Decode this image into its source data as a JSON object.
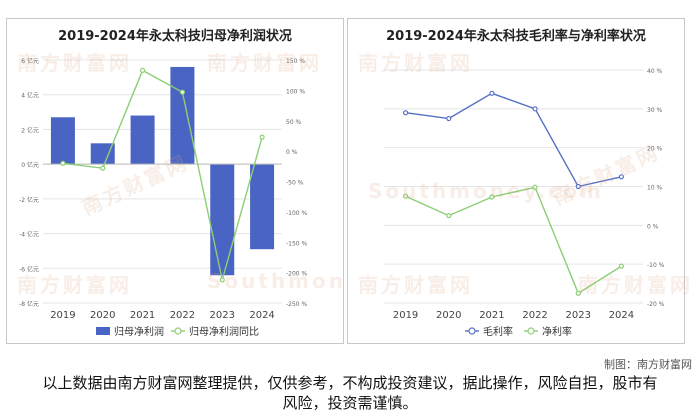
{
  "colors": {
    "bar": "#4a64c4",
    "yoy_line": "#8bcf73",
    "gross_line": "#5670c6",
    "net_line": "#8bcf73",
    "grid": "#e5e5e5",
    "axis_text": "#666666"
  },
  "watermark": {
    "cn": "南方财富网",
    "en": "Southmoney.com"
  },
  "chart_data": [
    {
      "type": "bar",
      "title": "2019-2024年永太科技归母净利润状况",
      "categories": [
        "2019",
        "2020",
        "2021",
        "2022",
        "2023",
        "2024"
      ],
      "y_left": {
        "ylim": [
          -8,
          6
        ],
        "ticks": [
          6,
          4,
          2,
          0,
          -2,
          -4,
          -6,
          -8
        ],
        "tick_labels": [
          "6 亿元",
          "4 亿元",
          "2 亿元",
          "0 亿元",
          "-2 亿元",
          "-4 亿元",
          "-6 亿元",
          "-8 亿元"
        ]
      },
      "y_right": {
        "ylim": [
          -250,
          150
        ],
        "ticks": [
          150,
          100,
          50,
          0,
          -50,
          -100,
          -150,
          -200,
          -250
        ],
        "tick_labels": [
          "150 %",
          "100 %",
          "50 %",
          "0 %",
          "-50 %",
          "-100 %",
          "-150 %",
          "-200 %",
          "-250 %"
        ]
      },
      "series": [
        {
          "name": "归母净利润",
          "type": "bar",
          "axis": "left",
          "values": [
            2.7,
            1.2,
            2.8,
            5.6,
            -6.4,
            -4.9
          ]
        },
        {
          "name": "归母净利润同比",
          "type": "line",
          "axis": "right",
          "values": [
            -20,
            -28,
            133,
            97,
            -212,
            23
          ]
        }
      ],
      "legend": {
        "placement": "bottom"
      },
      "grid": true
    },
    {
      "type": "line",
      "title": "2019-2024年永太科技毛利率与净利率状况",
      "categories": [
        "2019",
        "2020",
        "2021",
        "2022",
        "2023",
        "2024"
      ],
      "y_right": {
        "ylim": [
          -20,
          40
        ],
        "ticks": [
          40,
          30,
          20,
          10,
          0,
          -10,
          -20
        ],
        "tick_labels": [
          "40 %",
          "30 %",
          "20 %",
          "10 %",
          "0 %",
          "-10 %",
          "-20 %"
        ]
      },
      "series": [
        {
          "name": "毛利率",
          "values": [
            29,
            27.5,
            34,
            30,
            10,
            12.5
          ]
        },
        {
          "name": "净利率",
          "values": [
            7.5,
            2.5,
            7.3,
            9.8,
            -17.5,
            -10.5
          ]
        }
      ],
      "legend": {
        "placement": "bottom"
      },
      "grid": true
    }
  ],
  "footer": {
    "credit": "制图：南方财富网",
    "disclaimer": "以上数据由南方财富网整理提供，仅供参考，不构成投资建议，据此操作，风险自担，股市有风险，投资需谨慎。"
  }
}
